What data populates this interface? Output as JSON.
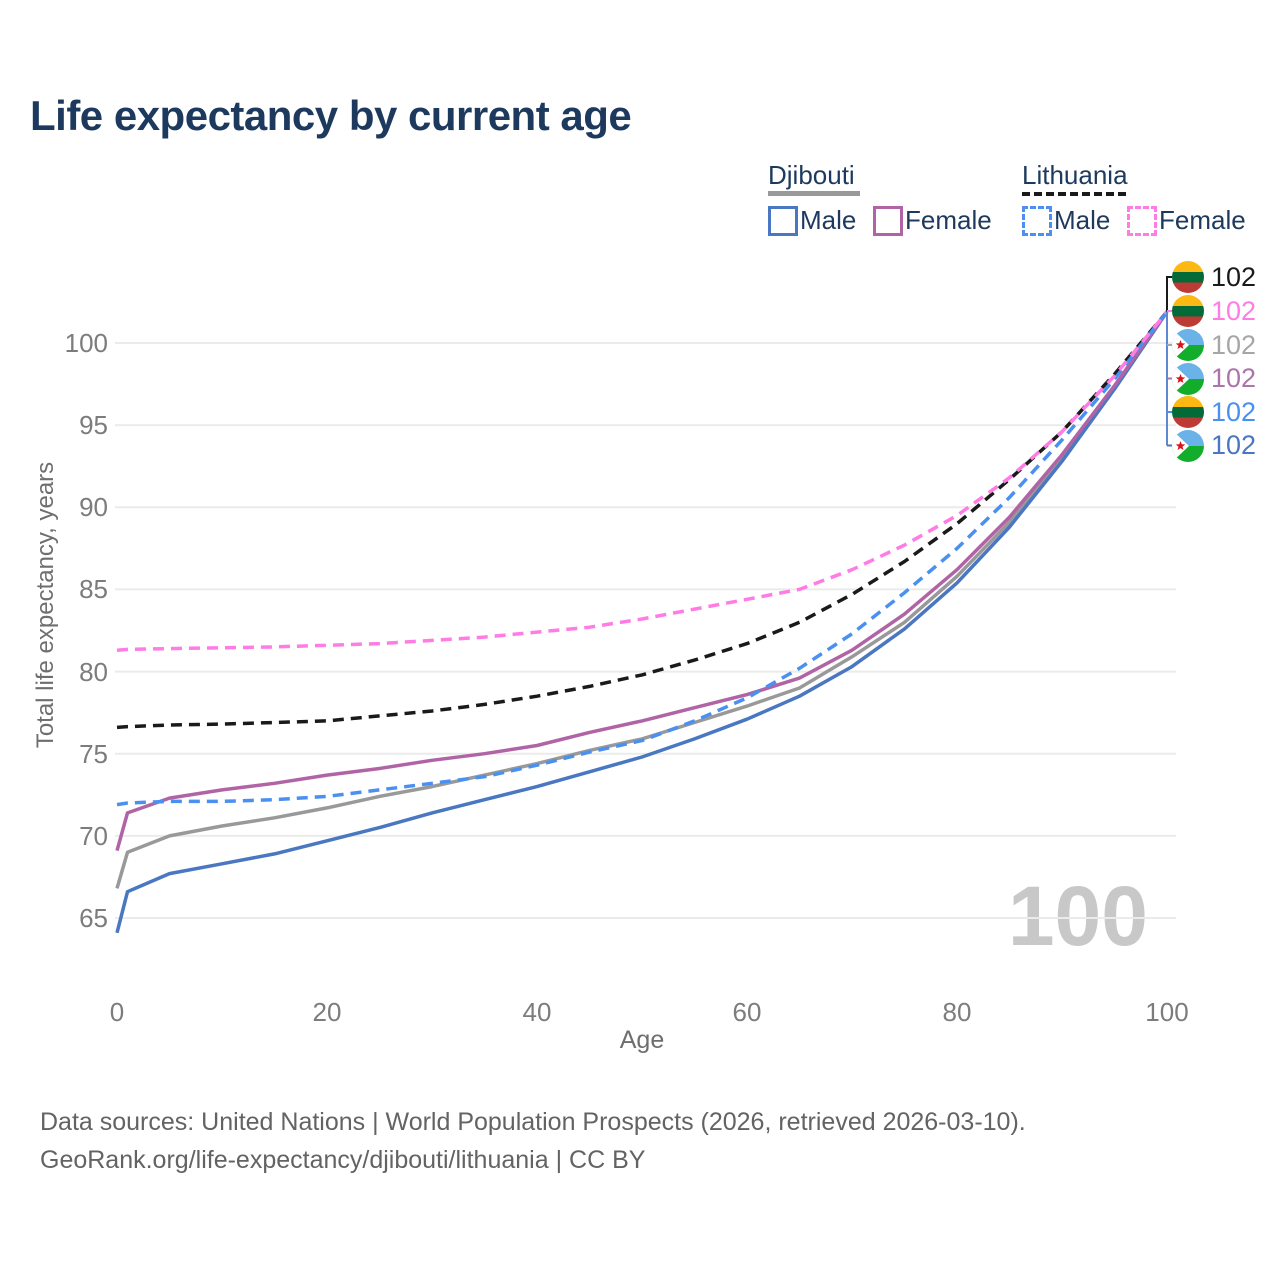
{
  "title": "Life expectancy by current age",
  "legend": {
    "djibouti": {
      "label": "Djibouti",
      "male_label": "Male",
      "female_label": "Female"
    },
    "lithuania": {
      "label": "Lithuania",
      "male_label": "Male",
      "female_label": "Female"
    }
  },
  "colors": {
    "djibouti_male": "#4a77c1",
    "djibouti_female": "#b164a5",
    "djibouti_all": "#999999",
    "lithuania_male": "#4a90f0",
    "lithuania_female": "#ff7ce5",
    "lithuania_all": "#1a1a1a",
    "title_text": "#1d3a5e",
    "axis_text": "#7c7c7c",
    "footer_text": "#636363",
    "watermark": "#c8c8c8",
    "gridline": "#ebebeb",
    "callout_vertical": "#5d87d1"
  },
  "y_axis": {
    "title": "Total life expectancy, years",
    "ticks": [
      65,
      70,
      75,
      80,
      85,
      90,
      95,
      100
    ]
  },
  "x_axis": {
    "title": "Age",
    "ticks": [
      0,
      20,
      40,
      60,
      80,
      100
    ]
  },
  "watermark": "100",
  "right_labels": [
    {
      "value": "102",
      "flag": "lithuania",
      "color": "#1a1a1a"
    },
    {
      "value": "102",
      "flag": "lithuania",
      "color": "#ff7ce5"
    },
    {
      "value": "102",
      "flag": "djibouti",
      "color": "#a6a6a6"
    },
    {
      "value": "102",
      "flag": "djibouti",
      "color": "#ad74a9"
    },
    {
      "value": "102",
      "flag": "lithuania",
      "color": "#4a90f0"
    },
    {
      "value": "102",
      "flag": "djibouti",
      "color": "#4a77c1"
    }
  ],
  "footer": {
    "line1": "Data sources: United Nations | World Population Prospects (2026, retrieved 2026-03-10).",
    "line2": "GeoRank.org/life-expectancy/djibouti/lithuania | CC BY"
  },
  "chart_data": {
    "type": "line",
    "title": "Life expectancy by current age",
    "xlabel": "Age",
    "ylabel": "Total life expectancy, years",
    "xlim": [
      0,
      100
    ],
    "ylim": [
      63.5,
      103
    ],
    "grid": "horizontal",
    "legend_position": "top-right",
    "x": [
      0,
      1,
      5,
      10,
      15,
      20,
      25,
      30,
      35,
      40,
      45,
      50,
      55,
      60,
      65,
      70,
      75,
      80,
      85,
      90,
      95,
      100
    ],
    "series": [
      {
        "name": "Djibouti All",
        "color": "#999999",
        "dash": "solid",
        "values": [
          66.8,
          69.0,
          70.0,
          70.6,
          71.1,
          71.7,
          72.4,
          73.0,
          73.7,
          74.4,
          75.2,
          75.9,
          76.9,
          77.9,
          79.0,
          80.9,
          83.0,
          85.8,
          89.1,
          92.9,
          97.2,
          101.9
        ]
      },
      {
        "name": "Djibouti Male",
        "color": "#4a77c1",
        "dash": "solid",
        "values": [
          64.1,
          66.6,
          67.7,
          68.3,
          68.9,
          69.7,
          70.5,
          71.4,
          72.2,
          73.0,
          73.9,
          74.8,
          75.9,
          77.1,
          78.5,
          80.3,
          82.6,
          85.4,
          88.8,
          92.8,
          97.2,
          101.9
        ]
      },
      {
        "name": "Djibouti Female",
        "color": "#b164a5",
        "dash": "solid",
        "values": [
          69.1,
          71.4,
          72.3,
          72.8,
          73.2,
          73.7,
          74.1,
          74.6,
          75.0,
          75.5,
          76.3,
          77.0,
          77.8,
          78.6,
          79.6,
          81.3,
          83.5,
          86.2,
          89.4,
          93.2,
          97.4,
          101.9
        ]
      },
      {
        "name": "Lithuania All",
        "color": "#1a1a1a",
        "dash": "dashed",
        "values": [
          76.6,
          76.65,
          76.75,
          76.8,
          76.9,
          77.0,
          77.3,
          77.6,
          78.0,
          78.5,
          79.1,
          79.8,
          80.7,
          81.7,
          83.0,
          84.7,
          86.7,
          89.0,
          91.7,
          94.6,
          98.1,
          101.9
        ]
      },
      {
        "name": "Lithuania Male",
        "color": "#4a90f0",
        "dash": "dashed",
        "values": [
          71.9,
          72.0,
          72.1,
          72.1,
          72.2,
          72.4,
          72.8,
          73.2,
          73.6,
          74.3,
          75.1,
          75.8,
          77.0,
          78.4,
          80.2,
          82.3,
          84.8,
          87.5,
          90.6,
          94.1,
          97.8,
          101.9
        ]
      },
      {
        "name": "Lithuania Female",
        "color": "#ff7ce5",
        "dash": "dashed",
        "values": [
          81.3,
          81.35,
          81.4,
          81.45,
          81.5,
          81.6,
          81.7,
          81.9,
          82.1,
          82.4,
          82.7,
          83.2,
          83.8,
          84.4,
          85.0,
          86.2,
          87.7,
          89.5,
          91.8,
          94.6,
          98.0,
          101.9
        ]
      }
    ]
  }
}
